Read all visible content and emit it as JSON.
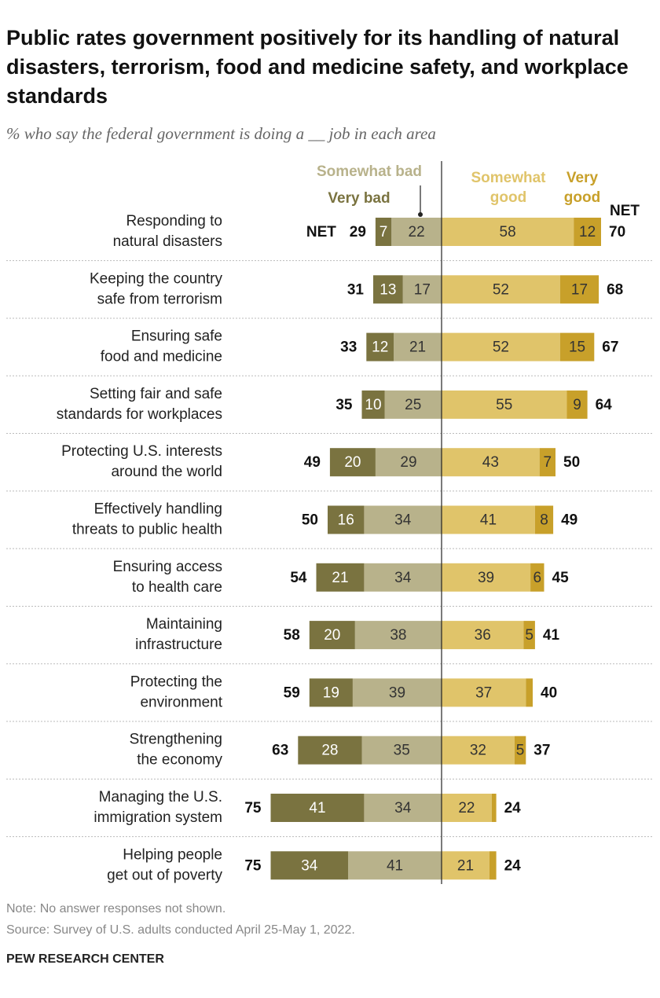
{
  "chart_data": {
    "type": "diverging-bar",
    "title": "Public rates government positively for its handling of natural disasters, terrorism, food and medicine safety, and workplace standards",
    "subtitle": "% who say the federal government is doing a __ job in each area",
    "categories": [
      [
        "Responding to",
        "natural disasters"
      ],
      [
        "Keeping the country",
        "safe from terrorism"
      ],
      [
        "Ensuring safe",
        "food and medicine"
      ],
      [
        "Setting fair and safe",
        "standards for workplaces"
      ],
      [
        "Protecting U.S. interests",
        "around the world"
      ],
      [
        "Effectively handling",
        "threats to public health"
      ],
      [
        "Ensuring access",
        "to health care"
      ],
      [
        "Maintaining",
        "infrastructure"
      ],
      [
        "Protecting the",
        "environment"
      ],
      [
        "Strengthening",
        "the economy"
      ],
      [
        "Managing the U.S.",
        "immigration system"
      ],
      [
        "Helping people",
        "get out of poverty"
      ]
    ],
    "series": [
      {
        "name": "Very bad",
        "color": "#7a7340",
        "side": "bad",
        "values": [
          7,
          13,
          12,
          10,
          20,
          16,
          21,
          20,
          19,
          28,
          41,
          34
        ]
      },
      {
        "name": "Somewhat bad",
        "color": "#b8b28b",
        "side": "bad",
        "values": [
          22,
          17,
          21,
          25,
          29,
          34,
          34,
          38,
          39,
          35,
          34,
          41
        ]
      },
      {
        "name": "Somewhat good",
        "color": "#e0c46a",
        "side": "good",
        "values": [
          58,
          52,
          52,
          55,
          43,
          41,
          39,
          36,
          37,
          32,
          22,
          21
        ]
      },
      {
        "name": "Very good",
        "color": "#c8a02a",
        "side": "good",
        "values": [
          12,
          17,
          15,
          9,
          7,
          8,
          6,
          5,
          3,
          5,
          2,
          3
        ],
        "value_labels": [
          "12",
          "17",
          "15",
          "9",
          "7",
          "8",
          "6",
          "5",
          null,
          "5",
          null,
          null
        ]
      }
    ],
    "net_label": "NET",
    "net_bad": [
      29,
      31,
      33,
      35,
      49,
      50,
      54,
      58,
      59,
      63,
      75,
      75
    ],
    "net_good": [
      70,
      68,
      67,
      64,
      50,
      49,
      45,
      41,
      40,
      37,
      24,
      24
    ],
    "note": "Note: No answer responses not shown.",
    "source": "Source: Survey of U.S. adults conducted April 25-May 1, 2022.",
    "brand": "PEW RESEARCH CENTER"
  }
}
